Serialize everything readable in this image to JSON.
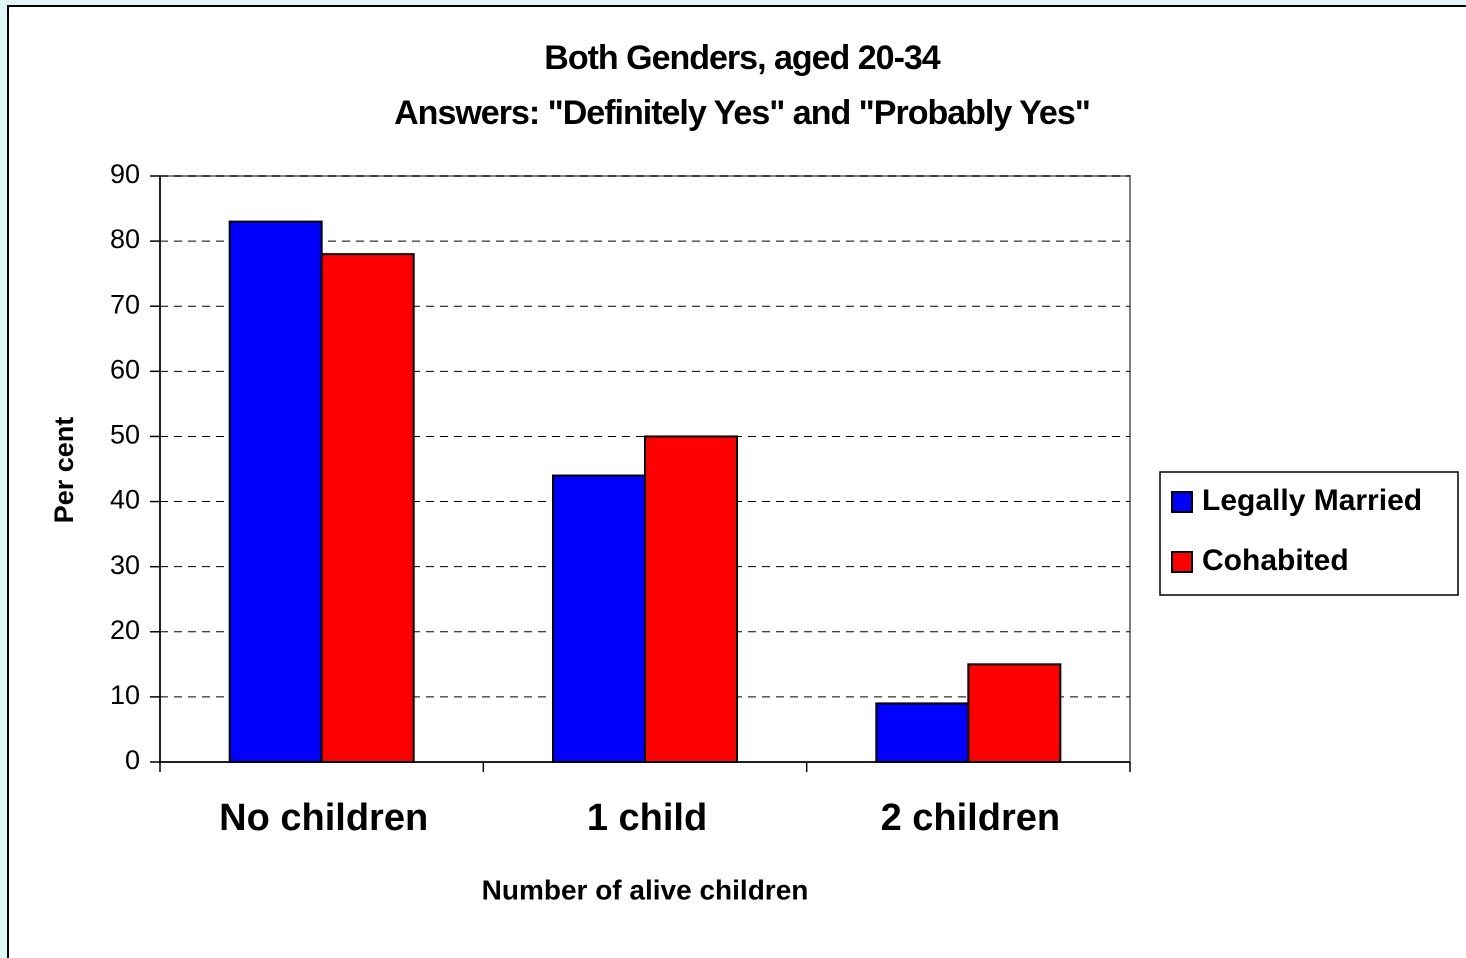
{
  "chart_data": {
    "type": "bar",
    "title": "Both Genders, aged 20-34",
    "subtitle": "Answers: \"Definitely Yes\" and \"Probably Yes\"",
    "y_label": "Per cent",
    "x_label": "Number of alive children",
    "categories": [
      "No children",
      "1 child",
      "2 children"
    ],
    "series": [
      {
        "name": "Legally Married",
        "color": "#0000ff",
        "values": [
          83,
          44,
          9
        ]
      },
      {
        "name": "Cohabited",
        "color": "#ff0000",
        "values": [
          78,
          50,
          15
        ]
      }
    ],
    "ylim": [
      0,
      90
    ],
    "yticks": [
      0,
      10,
      20,
      30,
      40,
      50,
      60,
      70,
      80,
      90
    ],
    "grid": true,
    "legend": "right"
  }
}
